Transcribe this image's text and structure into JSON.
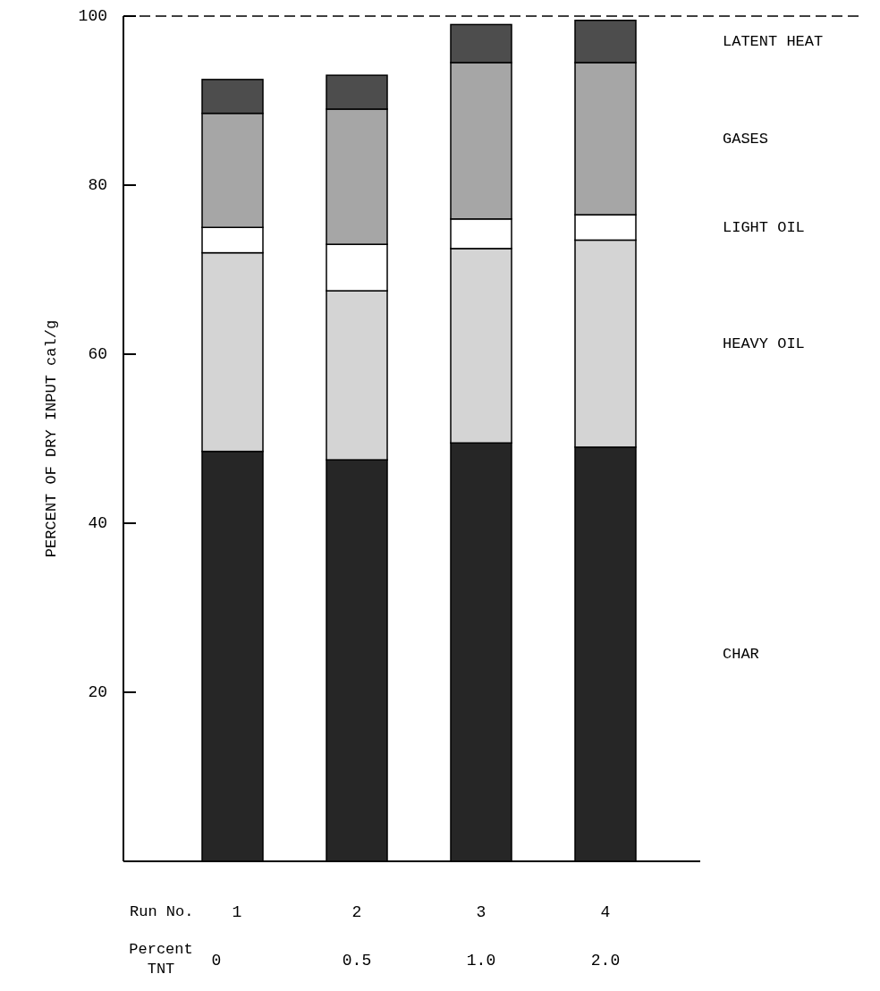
{
  "chart_data": {
    "type": "bar",
    "stacked": true,
    "ylabel": "PERCENT OF DRY INPUT cal/g",
    "categories": [
      "1",
      "2",
      "3",
      "4"
    ],
    "series": [
      {
        "name": "CHAR",
        "color": "#262626",
        "values": [
          48.5,
          47.5,
          49.5,
          49
        ]
      },
      {
        "name": "HEAVY OIL",
        "color": "#d4d4d4",
        "values": [
          23.5,
          20,
          23,
          24.5
        ]
      },
      {
        "name": "LIGHT OIL",
        "color": "#ffffff",
        "values": [
          3,
          5.5,
          3.5,
          3
        ]
      },
      {
        "name": "GASES",
        "color": "#a6a6a6",
        "values": [
          13.5,
          16,
          18.5,
          18
        ]
      },
      {
        "name": "LATENT HEAT",
        "color": "#4d4d4d",
        "values": [
          4,
          4,
          4.5,
          5
        ]
      }
    ],
    "ylim": [
      0,
      100
    ],
    "yticks": [
      20,
      40,
      60,
      80,
      100
    ],
    "ref_lines": [
      {
        "axis": "y",
        "value": 100,
        "line_style": "dashed",
        "color": "#000000"
      }
    ],
    "annotations": [
      "Run No.",
      "Percent TNT",
      "0",
      "0.5",
      "1.0",
      "2.0"
    ]
  }
}
